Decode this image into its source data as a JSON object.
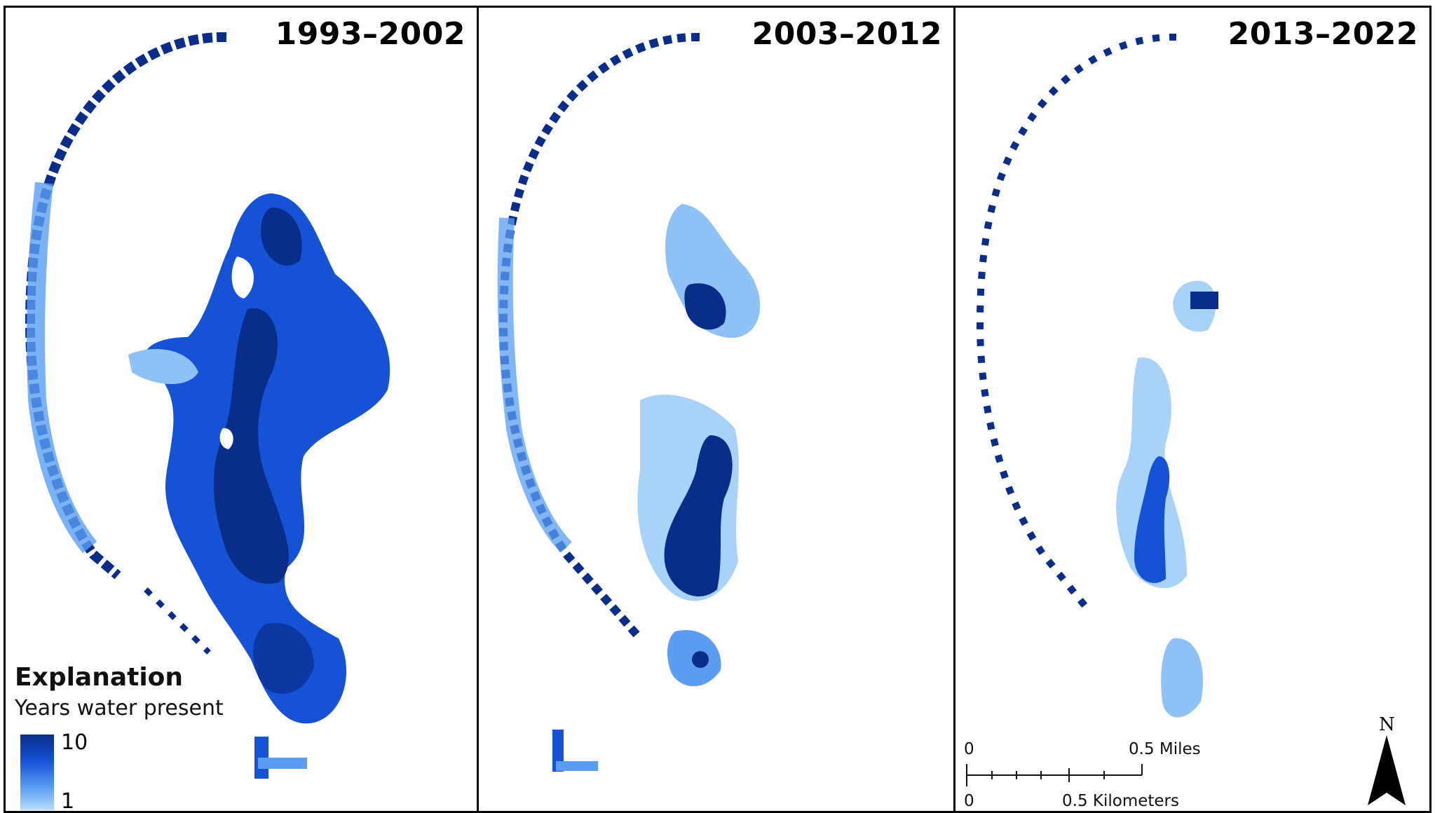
{
  "panels": [
    {
      "title": "1993–2002"
    },
    {
      "title": "2003–2012"
    },
    {
      "title": "2013–2022"
    }
  ],
  "legend": {
    "title": "Explanation",
    "subtitle": "Years water present",
    "max_label": "10",
    "min_label": "1",
    "ramp_colors": [
      "#0a2d8a",
      "#1552d6",
      "#5a9df2",
      "#b9dcfb"
    ]
  },
  "scalebar": {
    "top_zero": "0",
    "top_label": "0.5 Miles",
    "bottom_zero": "0",
    "bottom_label": "0.5 Kilometers"
  },
  "north_arrow": {
    "label": "N"
  },
  "colors": {
    "water_10_years": "#082a87",
    "water_mid": "#1760e0",
    "water_low": "#b6daf9",
    "frame": "#000000"
  }
}
